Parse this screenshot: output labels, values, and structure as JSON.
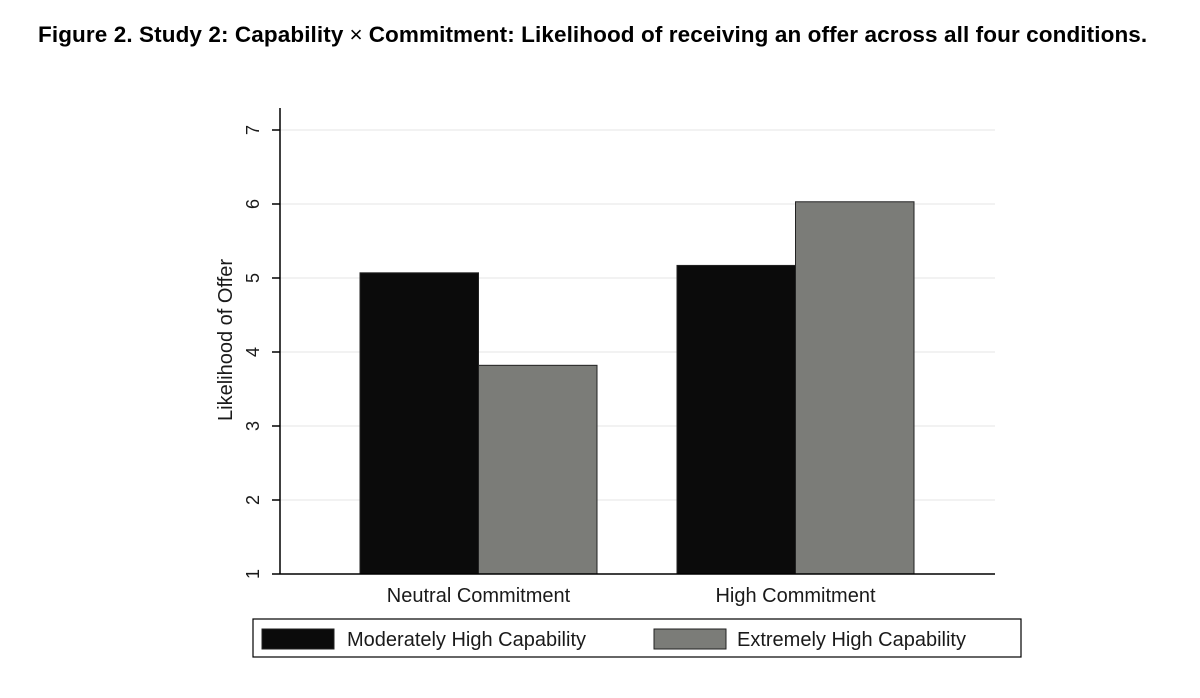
{
  "figure": {
    "title_part1": "Figure 2.  Study 2: Capability",
    "times_symbol": "×",
    "title_part2": "Commitment: Likelihood of receiving an offer across all four conditions."
  },
  "chart_data": {
    "type": "bar",
    "title": "Figure 2.  Study 2: Capability × Commitment: Likelihood of receiving an offer across all four conditions.",
    "xlabel": "",
    "ylabel": "Likelihood of Offer",
    "ylim": [
      1,
      7
    ],
    "yticks": [
      1,
      2,
      3,
      4,
      5,
      6,
      7
    ],
    "categories": [
      "Neutral Commitment",
      "High Commitment"
    ],
    "series": [
      {
        "name": "Moderately High Capability",
        "values": [
          5.07,
          5.17
        ],
        "color": "#0b0b0b"
      },
      {
        "name": "Extremely High Capability",
        "values": [
          3.82,
          6.03
        ],
        "color": "#7b7c78"
      }
    ],
    "grid": true,
    "legend_position": "bottom"
  }
}
